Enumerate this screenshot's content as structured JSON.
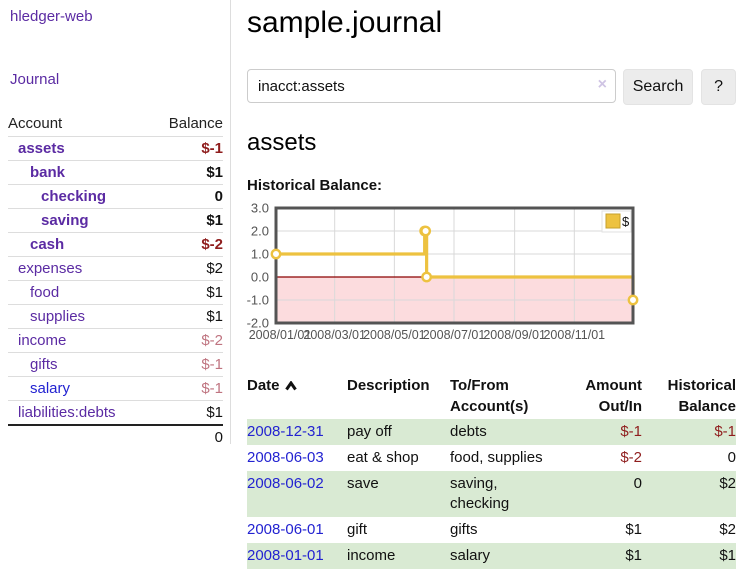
{
  "app": {
    "brand": "hledger-web",
    "nav_journal": "Journal"
  },
  "sidebar_accounts": {
    "headers": {
      "account": "Account",
      "balance": "Balance"
    },
    "rows": [
      {
        "name": "assets",
        "balance": "$-1",
        "level": 1,
        "selected": true,
        "balance_style": "neg-strong",
        "link_style": "visited"
      },
      {
        "name": "bank",
        "balance": "$1",
        "level": 2,
        "selected": true,
        "balance_style": "strong",
        "link_style": "visited"
      },
      {
        "name": "checking",
        "balance": "0",
        "level": 3,
        "selected": true,
        "balance_style": "strong",
        "link_style": "visited"
      },
      {
        "name": "saving",
        "balance": "$1",
        "level": 3,
        "selected": true,
        "balance_style": "strong",
        "link_style": "visited"
      },
      {
        "name": "cash",
        "balance": "$-2",
        "level": 2,
        "selected": true,
        "balance_style": "neg-strong",
        "link_style": "visited"
      },
      {
        "name": "expenses",
        "balance": "$2",
        "level": 1,
        "selected": false,
        "balance_style": "",
        "link_style": "visited"
      },
      {
        "name": "food",
        "balance": "$1",
        "level": 2,
        "selected": false,
        "balance_style": "",
        "link_style": "visited"
      },
      {
        "name": "supplies",
        "balance": "$1",
        "level": 2,
        "selected": false,
        "balance_style": "",
        "link_style": "visited"
      },
      {
        "name": "income",
        "balance": "$-2",
        "level": 1,
        "selected": false,
        "balance_style": "neg-soft",
        "link_style": "visited"
      },
      {
        "name": "gifts",
        "balance": "$-1",
        "level": 2,
        "selected": false,
        "balance_style": "neg-soft",
        "link_style": "visited"
      },
      {
        "name": "salary",
        "balance": "$-1",
        "level": 2,
        "selected": false,
        "balance_style": "neg-soft",
        "link_style": "unvisited"
      },
      {
        "name": "liabilities:debts",
        "balance": "$1",
        "level": 1,
        "selected": false,
        "balance_style": "",
        "link_style": "visited"
      }
    ],
    "total": "0"
  },
  "header": {
    "title": "sample.journal"
  },
  "search": {
    "value": "inacct:assets",
    "clear_icon": "×",
    "button_label": "Search",
    "help_label": "?"
  },
  "account_page": {
    "title": "assets",
    "chart_label": "Historical Balance:"
  },
  "chart_data": {
    "type": "line",
    "title": "Historical Balance:",
    "step": true,
    "series": [
      {
        "name": "$",
        "color": "#EDC240",
        "points": [
          [
            "2008-01-01",
            1
          ],
          [
            "2008-06-01",
            2
          ],
          [
            "2008-06-02",
            2
          ],
          [
            "2008-06-03",
            0
          ],
          [
            "2008-12-31",
            -1
          ]
        ]
      }
    ],
    "x_range": [
      "2008-01-01",
      "2008-12-31"
    ],
    "x_tick_labels": [
      "2008/01/01",
      "2008/03/01",
      "2008/05/01",
      "2008/07/01",
      "2008/09/01",
      "2008/11/01"
    ],
    "y_ticks": [
      3.0,
      2.0,
      1.0,
      0.0,
      -1.0,
      -2.0
    ],
    "y_tick_labels": [
      "3.0",
      "2.0",
      "1.0",
      "0.0",
      "-1.0",
      "-2.0"
    ],
    "ylim": [
      -2,
      3
    ],
    "grid": true,
    "legend": "$",
    "legend_position": "top-right",
    "negative_region_color": "#fcdcde",
    "zero_line_color": "#8b0000",
    "grid_color": "#d9d9d9",
    "border_color": "#545454",
    "tick_label_color": "#545454"
  },
  "register": {
    "headers": {
      "date": "Date",
      "description": "Description",
      "account": "To/From Account(s)",
      "amount": "Amount Out/In",
      "balance": "Historical Balance"
    },
    "sort": {
      "column": "date",
      "direction": "ascending-icon"
    },
    "rows": [
      {
        "date": "2008-12-31",
        "description": "pay off",
        "accounts": "debts",
        "amount": "$-1",
        "amount_negative": true,
        "balance": "$-1",
        "balance_negative": true,
        "accounts_wrap": false
      },
      {
        "date": "2008-06-03",
        "description": "eat & shop",
        "accounts": "food, supplies",
        "amount": "$-2",
        "amount_negative": true,
        "balance": "0",
        "balance_negative": false,
        "accounts_wrap": false
      },
      {
        "date": "2008-06-02",
        "description": "save",
        "accounts": "saving, checking",
        "amount": "0",
        "amount_negative": false,
        "balance": "$2",
        "balance_negative": false,
        "accounts_wrap": true
      },
      {
        "date": "2008-06-01",
        "description": "gift",
        "accounts": "gifts",
        "amount": "$1",
        "amount_negative": false,
        "balance": "$2",
        "balance_negative": false,
        "accounts_wrap": false
      },
      {
        "date": "2008-01-01",
        "description": "income",
        "accounts": "salary",
        "amount": "$1",
        "amount_negative": false,
        "balance": "$1",
        "balance_negative": false,
        "accounts_wrap": false
      }
    ]
  },
  "colors": {
    "link_visited_purple": "#5b2ba3",
    "link_blue": "#2323d1",
    "negative_strong": "#8f1d1d",
    "negative_soft": "#bf7480",
    "row_green": "#d9ead3",
    "series_gold": "#EDC240",
    "chart_negative_bg": "#fcdcde",
    "zero_line_red": "#8b0000",
    "button_bg": "#ececec"
  }
}
